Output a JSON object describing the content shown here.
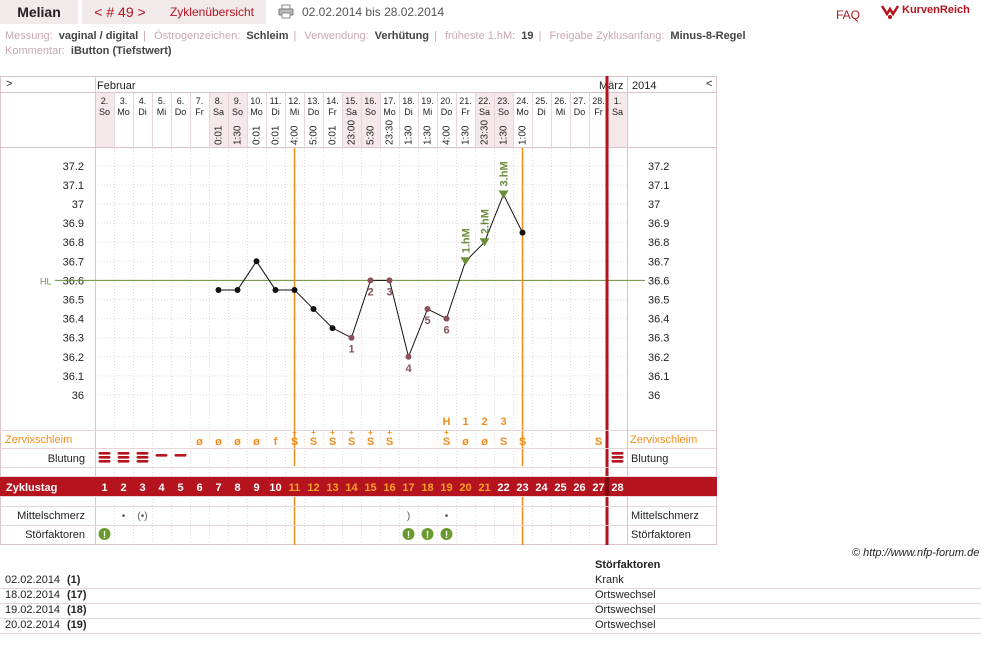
{
  "header": {
    "name": "Melian",
    "cycle_label": "< # 49 >",
    "overview_tab": "Zyklenübersicht",
    "date_range": "02.02.2014 bis 28.02.2014",
    "faq": "FAQ",
    "logo_text": "KurvenReich",
    "printer_icon": "printer-icon",
    "logo_icon": "kurvenreich-logo-icon"
  },
  "meta": {
    "line1": [
      {
        "label": "Messung:",
        "value": "vaginal / digital"
      },
      {
        "label": "Östrogenzeichen:",
        "value": "Schleim"
      },
      {
        "label": "Verwendung:",
        "value": "Verhütung"
      },
      {
        "label": "früheste 1.hM:",
        "value": "19"
      },
      {
        "label": "Freigabe Zyklusanfang:",
        "value": "Minus-8-Regel"
      }
    ],
    "line2": [
      {
        "label": "Kommentar:",
        "value": "iButton (Tiefstwert)"
      }
    ]
  },
  "chart_data": {
    "type": "line",
    "title": "",
    "nav_prev": ">",
    "nav_next": "<",
    "month_left": "Februar",
    "month_right": "März",
    "year": "2014",
    "hl_label": "HL",
    "hl_value": 36.6,
    "ylim": [
      35.95,
      37.25
    ],
    "y_ticks": [
      "37.2",
      "37.1",
      "37",
      "36.9",
      "36.8",
      "36.7",
      "36.6",
      "36.5",
      "36.4",
      "36.3",
      "36.2",
      "36.1",
      "36"
    ],
    "days": [
      {
        "date": "2.",
        "wd": "So",
        "time": "",
        "cycle": "1",
        "zs": "",
        "bl": "3",
        "st": "!",
        "ms": ""
      },
      {
        "date": "3.",
        "wd": "Mo",
        "time": "",
        "cycle": "2",
        "zs": "",
        "bl": "3",
        "st": "",
        "ms": "•"
      },
      {
        "date": "4.",
        "wd": "Di",
        "time": "",
        "cycle": "3",
        "zs": "",
        "bl": "3",
        "st": "",
        "ms": "(•)"
      },
      {
        "date": "5.",
        "wd": "Mi",
        "time": "",
        "cycle": "4",
        "zs": "",
        "bl": "1",
        "st": "",
        "ms": ""
      },
      {
        "date": "6.",
        "wd": "Do",
        "time": "",
        "cycle": "5",
        "zs": "",
        "bl": "1",
        "st": "",
        "ms": ""
      },
      {
        "date": "7.",
        "wd": "Fr",
        "time": "",
        "cycle": "6",
        "zs": "ø",
        "bl": "",
        "st": "",
        "ms": ""
      },
      {
        "date": "8.",
        "wd": "Sa",
        "time": "0:01",
        "cycle": "7",
        "zs": "ø",
        "bl": "",
        "st": "",
        "ms": ""
      },
      {
        "date": "9.",
        "wd": "So",
        "time": "1:30",
        "cycle": "8",
        "zs": "ø",
        "bl": "",
        "st": "",
        "ms": ""
      },
      {
        "date": "10.",
        "wd": "Mo",
        "time": "0:01",
        "cycle": "9",
        "zs": "ø",
        "bl": "",
        "st": "",
        "ms": ""
      },
      {
        "date": "11.",
        "wd": "Di",
        "time": "0:01",
        "cycle": "10",
        "zs": "f",
        "bl": "",
        "st": "",
        "ms": ""
      },
      {
        "date": "12.",
        "wd": "Mi",
        "time": "4:00",
        "cycle": "11",
        "zs": "S+",
        "bl": "",
        "st": "",
        "ms": ""
      },
      {
        "date": "13.",
        "wd": "Do",
        "time": "5:00",
        "cycle": "12",
        "zs": "S+",
        "bl": "",
        "st": "",
        "ms": ""
      },
      {
        "date": "14.",
        "wd": "Fr",
        "time": "0:01",
        "cycle": "13",
        "zs": "S+",
        "bl": "",
        "st": "",
        "ms": ""
      },
      {
        "date": "15.",
        "wd": "Sa",
        "time": "23:00",
        "cycle": "14",
        "zs": "S+",
        "bl": "",
        "st": "",
        "ms": ""
      },
      {
        "date": "16.",
        "wd": "So",
        "time": "5:30",
        "cycle": "15",
        "zs": "S+",
        "bl": "",
        "st": "",
        "ms": ""
      },
      {
        "date": "17.",
        "wd": "Mo",
        "time": "23:30",
        "cycle": "16",
        "zs": "S+",
        "bl": "",
        "st": "",
        "ms": ""
      },
      {
        "date": "18.",
        "wd": "Di",
        "time": "1:30",
        "cycle": "17",
        "zs": "",
        "bl": "",
        "st": "!",
        "ms": ")"
      },
      {
        "date": "19.",
        "wd": "Mi",
        "time": "1:30",
        "cycle": "18",
        "zs": "",
        "bl": "",
        "st": "!",
        "ms": ""
      },
      {
        "date": "20.",
        "wd": "Do",
        "time": "4:00",
        "cycle": "19",
        "zs": "S+",
        "bl": "",
        "st": "!",
        "ms": "•"
      },
      {
        "date": "21.",
        "wd": "Fr",
        "time": "1:30",
        "cycle": "20",
        "zs": "ø",
        "bl": "",
        "st": "",
        "ms": ""
      },
      {
        "date": "22.",
        "wd": "Sa",
        "time": "23:30",
        "cycle": "21",
        "zs": "ø",
        "bl": "",
        "st": "",
        "ms": ""
      },
      {
        "date": "23.",
        "wd": "So",
        "time": "1:30",
        "cycle": "22",
        "zs": "S",
        "bl": "",
        "st": "",
        "ms": ""
      },
      {
        "date": "24.",
        "wd": "Mo",
        "time": "1:00",
        "cycle": "23",
        "zs": "S",
        "bl": "",
        "st": "",
        "ms": ""
      },
      {
        "date": "25.",
        "wd": "Di",
        "time": "",
        "cycle": "24",
        "zs": "",
        "bl": "",
        "st": "",
        "ms": ""
      },
      {
        "date": "26.",
        "wd": "Mi",
        "time": "",
        "cycle": "25",
        "zs": "",
        "bl": "",
        "st": "",
        "ms": ""
      },
      {
        "date": "27.",
        "wd": "Do",
        "time": "",
        "cycle": "26",
        "zs": "",
        "bl": "",
        "st": "",
        "ms": ""
      },
      {
        "date": "28.",
        "wd": "Fr",
        "time": "",
        "cycle": "27",
        "zs": "S",
        "bl": "",
        "st": "",
        "ms": ""
      },
      {
        "date": "1.",
        "wd": "Sa",
        "time": "",
        "cycle": "28",
        "zs": "",
        "bl": "3",
        "st": "",
        "ms": ""
      }
    ],
    "temps": [
      {
        "day": 7,
        "t": 36.55,
        "label": ""
      },
      {
        "day": 8,
        "t": 36.55,
        "label": ""
      },
      {
        "day": 9,
        "t": 36.7,
        "label": ""
      },
      {
        "day": 10,
        "t": 36.55,
        "label": ""
      },
      {
        "day": 11,
        "t": 36.55,
        "label": ""
      },
      {
        "day": 12,
        "t": 36.45,
        "label": ""
      },
      {
        "day": 13,
        "t": 36.35,
        "label": ""
      },
      {
        "day": 14,
        "t": 36.3,
        "label": "1"
      },
      {
        "day": 15,
        "t": 36.6,
        "label": "2"
      },
      {
        "day": 16,
        "t": 36.6,
        "label": "3"
      },
      {
        "day": 17,
        "t": 36.2,
        "label": "4"
      },
      {
        "day": 18,
        "t": 36.45,
        "label": "5"
      },
      {
        "day": 19,
        "t": 36.4,
        "label": "6"
      },
      {
        "day": 20,
        "t": 36.7,
        "label": "1.hM"
      },
      {
        "day": 21,
        "t": 36.8,
        "label": "2.hM"
      },
      {
        "day": 22,
        "t": 37.05,
        "label": "3.hM"
      },
      {
        "day": 23,
        "t": 36.85,
        "label": ""
      }
    ],
    "peak_labels": [
      {
        "day": 19,
        "text": "H"
      },
      {
        "day": 20,
        "text": "1"
      },
      {
        "day": 21,
        "text": "2"
      },
      {
        "day": 22,
        "text": "3"
      }
    ],
    "row_labels": {
      "zervix": "Zervixschleim",
      "blutung": "Blutung",
      "zyklustag": "Zyklustag",
      "mittelschmerz": "Mittelschmerz",
      "stoerfaktoren": "Störfaktoren"
    },
    "orange_lines_days": [
      10.5,
      22.5
    ],
    "colors": {
      "accent": "#b5131d",
      "orange": "#f28c1c",
      "green": "#6a8f3a",
      "grid": "#e6d6d9",
      "point": "#8a4f57",
      "weekend": "#f4e8ea"
    }
  },
  "footer": {
    "copyright": "© http://www.nfp-forum.de",
    "table_header": "Störfaktoren",
    "rows": [
      {
        "date": "02.02.2014",
        "day": "(1)",
        "value": "Krank"
      },
      {
        "date": "18.02.2014",
        "day": "(17)",
        "value": "Ortswechsel"
      },
      {
        "date": "19.02.2014",
        "day": "(18)",
        "value": "Ortswechsel"
      },
      {
        "date": "20.02.2014",
        "day": "(19)",
        "value": "Ortswechsel"
      }
    ]
  }
}
